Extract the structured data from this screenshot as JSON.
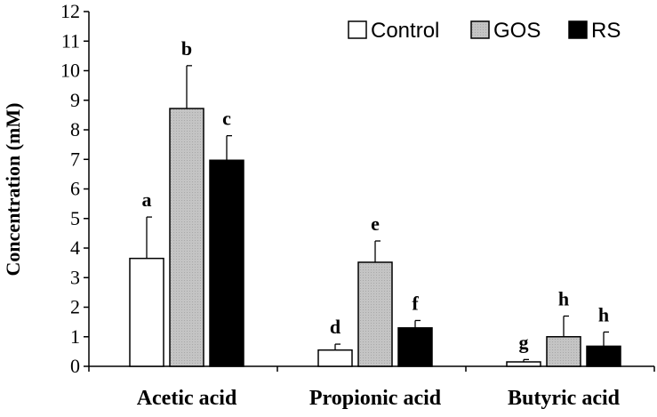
{
  "chart_data": {
    "type": "bar",
    "title": "",
    "xlabel": "",
    "ylabel": "Concentration (mM)",
    "ylim": [
      0,
      12
    ],
    "yticks": [
      "0",
      "1",
      "2",
      "3",
      "4",
      "5",
      "6",
      "7",
      "8",
      "9",
      "10",
      "11",
      "12"
    ],
    "categories": [
      "Acetic acid",
      "Propionic acid",
      "Butyric acid"
    ],
    "series": [
      {
        "name": "Control",
        "color": "#ffffff",
        "values": [
          3.65,
          0.55,
          0.15
        ],
        "errors": [
          1.4,
          0.2,
          0.08
        ],
        "letters": [
          "a",
          "d",
          "g"
        ]
      },
      {
        "name": "GOS",
        "color": "#bfbfbf",
        "values": [
          8.72,
          3.52,
          1.0
        ],
        "errors": [
          1.45,
          0.72,
          0.7
        ],
        "letters": [
          "b",
          "e",
          "h"
        ]
      },
      {
        "name": "RS",
        "color": "#000000",
        "values": [
          6.97,
          1.3,
          0.68
        ],
        "errors": [
          0.83,
          0.25,
          0.48
        ],
        "letters": [
          "c",
          "f",
          "h"
        ]
      }
    ],
    "legend": "top-right",
    "grid": false
  }
}
